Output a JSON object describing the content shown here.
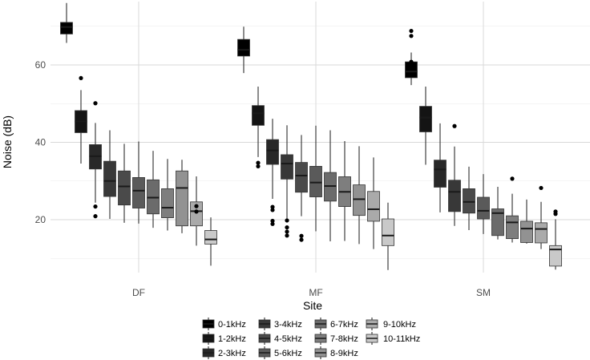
{
  "chart_data": {
    "type": "boxplot",
    "xlabel": "Site",
    "ylabel": "Noise (dB)",
    "categories": [
      "DF",
      "MF",
      "SM"
    ],
    "y_ticks": [
      20,
      40,
      60
    ],
    "ylim": [
      5,
      75
    ],
    "grid": true,
    "legend_position": "bottom",
    "series": [
      {
        "name": "0-1kHz",
        "color": "#000000",
        "boxes": [
          {
            "site": "DF",
            "whisker_low": 65.7,
            "q1": 68.0,
            "median": 69.8,
            "q3": 71.0,
            "whisker_high": 76.0,
            "outliers": []
          },
          {
            "site": "MF",
            "whisker_low": 57.9,
            "q1": 62.3,
            "median": 63.9,
            "q3": 66.6,
            "whisker_high": 69.9,
            "outliers": []
          },
          {
            "site": "SM",
            "whisker_low": 54.8,
            "q1": 56.7,
            "median": 58.3,
            "q3": 60.8,
            "whisker_high": 63.2,
            "outliers": [
              60.8,
              67.5,
              68.8
            ]
          }
        ]
      },
      {
        "name": "1-2kHz",
        "color": "#141414",
        "boxes": [
          {
            "site": "DF",
            "whisker_low": 34.5,
            "q1": 42.5,
            "median": 45.4,
            "q3": 48.2,
            "whisker_high": 53.5,
            "outliers": [
              56.6
            ]
          },
          {
            "site": "MF",
            "whisker_low": 36.2,
            "q1": 44.4,
            "median": 47.5,
            "q3": 49.5,
            "whisker_high": 54.4,
            "outliers": [
              33.8,
              34.7
            ]
          },
          {
            "site": "SM",
            "whisker_low": 34.2,
            "q1": 42.7,
            "median": 46.4,
            "q3": 49.3,
            "whisker_high": 54.4,
            "outliers": []
          }
        ]
      },
      {
        "name": "2-3kHz",
        "color": "#282828",
        "boxes": [
          {
            "site": "DF",
            "whisker_low": 24.4,
            "q1": 33.1,
            "median": 36.4,
            "q3": 39.4,
            "whisker_high": 45.0,
            "outliers": [
              20.9,
              23.4,
              50.1
            ]
          },
          {
            "site": "MF",
            "whisker_low": 25.4,
            "q1": 34.3,
            "median": 37.9,
            "q3": 40.7,
            "whisker_high": 46.1,
            "outliers": [
              18.9,
              19.7,
              22.5,
              23.3
            ]
          },
          {
            "site": "SM",
            "whisker_low": 21.9,
            "q1": 28.4,
            "median": 33.0,
            "q3": 35.4,
            "whisker_high": 44.9,
            "outliers": []
          }
        ]
      },
      {
        "name": "3-4kHz",
        "color": "#383838",
        "boxes": [
          {
            "site": "DF",
            "whisker_low": 20.2,
            "q1": 26.0,
            "median": 30.0,
            "q3": 35.1,
            "whisker_high": 43.1,
            "outliers": []
          },
          {
            "site": "MF",
            "whisker_low": 19.5,
            "q1": 30.5,
            "median": 34.5,
            "q3": 36.8,
            "whisker_high": 44.4,
            "outliers": [
              15.9,
              16.9,
              18.0,
              19.8
            ]
          },
          {
            "site": "SM",
            "whisker_low": 18.4,
            "q1": 22.1,
            "median": 27.2,
            "q3": 30.2,
            "whisker_high": 38.9,
            "outliers": [
              44.2
            ]
          }
        ]
      },
      {
        "name": "4-5kHz",
        "color": "#4a4a4a",
        "boxes": [
          {
            "site": "DF",
            "whisker_low": 19.2,
            "q1": 23.8,
            "median": 28.6,
            "q3": 32.6,
            "whisker_high": 39.6,
            "outliers": []
          },
          {
            "site": "MF",
            "whisker_low": 20.9,
            "q1": 27.1,
            "median": 31.4,
            "q3": 34.8,
            "whisker_high": 41.9,
            "outliers": [
              14.8,
              15.8
            ]
          },
          {
            "site": "SM",
            "whisker_low": 17.3,
            "q1": 21.7,
            "median": 24.6,
            "q3": 28.0,
            "whisker_high": 33.7,
            "outliers": []
          }
        ]
      },
      {
        "name": "5-6kHz",
        "color": "#5a5a5a",
        "boxes": [
          {
            "site": "DF",
            "whisker_low": 19.0,
            "q1": 23.0,
            "median": 27.5,
            "q3": 30.9,
            "whisker_high": 40.2,
            "outliers": []
          },
          {
            "site": "MF",
            "whisker_low": 17.0,
            "q1": 25.9,
            "median": 29.6,
            "q3": 33.8,
            "whisker_high": 44.3,
            "outliers": []
          },
          {
            "site": "SM",
            "whisker_low": 16.3,
            "q1": 20.2,
            "median": 22.3,
            "q3": 25.8,
            "whisker_high": 31.8,
            "outliers": []
          }
        ]
      },
      {
        "name": "6-7kHz",
        "color": "#6b6b6b",
        "boxes": [
          {
            "site": "DF",
            "whisker_low": 17.9,
            "q1": 21.5,
            "median": 25.7,
            "q3": 30.3,
            "whisker_high": 37.8,
            "outliers": []
          },
          {
            "site": "MF",
            "whisker_low": 14.4,
            "q1": 24.8,
            "median": 28.7,
            "q3": 32.2,
            "whisker_high": 43.1,
            "outliers": []
          },
          {
            "site": "SM",
            "whisker_low": 14.9,
            "q1": 15.9,
            "median": 21.7,
            "q3": 22.8,
            "whisker_high": 28.5,
            "outliers": []
          }
        ]
      },
      {
        "name": "7-8kHz",
        "color": "#7e7e7e",
        "boxes": [
          {
            "site": "DF",
            "whisker_low": 17.2,
            "q1": 20.5,
            "median": 23.1,
            "q3": 28.0,
            "whisker_high": 35.7,
            "outliers": []
          },
          {
            "site": "MF",
            "whisker_low": 14.5,
            "q1": 23.4,
            "median": 27.2,
            "q3": 31.1,
            "whisker_high": 40.3,
            "outliers": []
          },
          {
            "site": "SM",
            "whisker_low": 14.1,
            "q1": 15.1,
            "median": 19.3,
            "q3": 21.0,
            "whisker_high": 26.7,
            "outliers": [
              30.6
            ]
          }
        ]
      },
      {
        "name": "8-9kHz",
        "color": "#929292",
        "boxes": [
          {
            "site": "DF",
            "whisker_low": 16.5,
            "q1": 18.4,
            "median": 28.2,
            "q3": 32.6,
            "whisker_high": 35.5,
            "outliers": []
          },
          {
            "site": "MF",
            "whisker_low": 13.7,
            "q1": 21.1,
            "median": 25.3,
            "q3": 29.0,
            "whisker_high": 39.0,
            "outliers": []
          },
          {
            "site": "SM",
            "whisker_low": 13.8,
            "q1": 14.1,
            "median": 17.7,
            "q3": 19.6,
            "whisker_high": 25.2,
            "outliers": []
          }
        ]
      },
      {
        "name": "9-10kHz",
        "color": "#aaaaaa",
        "boxes": [
          {
            "site": "DF",
            "whisker_low": 13.3,
            "q1": 18.4,
            "median": 22.2,
            "q3": 24.6,
            "whisker_high": 31.2,
            "outliers": [
              22.1,
              23.5
            ]
          },
          {
            "site": "MF",
            "whisker_low": 12.4,
            "q1": 19.6,
            "median": 22.7,
            "q3": 27.3,
            "whisker_high": 36.1,
            "outliers": []
          },
          {
            "site": "SM",
            "whisker_low": 12.4,
            "q1": 14.0,
            "median": 17.6,
            "q3": 19.2,
            "whisker_high": 24.6,
            "outliers": [
              28.2
            ]
          }
        ]
      },
      {
        "name": "10-11kHz",
        "color": "#c9c9c9",
        "boxes": [
          {
            "site": "DF",
            "whisker_low": 8.1,
            "q1": 13.7,
            "median": 14.9,
            "q3": 17.2,
            "whisker_high": 20.6,
            "outliers": []
          },
          {
            "site": "MF",
            "whisker_low": 7.0,
            "q1": 13.3,
            "median": 15.9,
            "q3": 20.2,
            "whisker_high": 24.4,
            "outliers": []
          },
          {
            "site": "SM",
            "whisker_low": 7.1,
            "q1": 8.0,
            "median": 12.3,
            "q3": 13.3,
            "whisker_high": 20.1,
            "outliers": [
              21.5,
              22.1
            ]
          }
        ]
      }
    ]
  }
}
